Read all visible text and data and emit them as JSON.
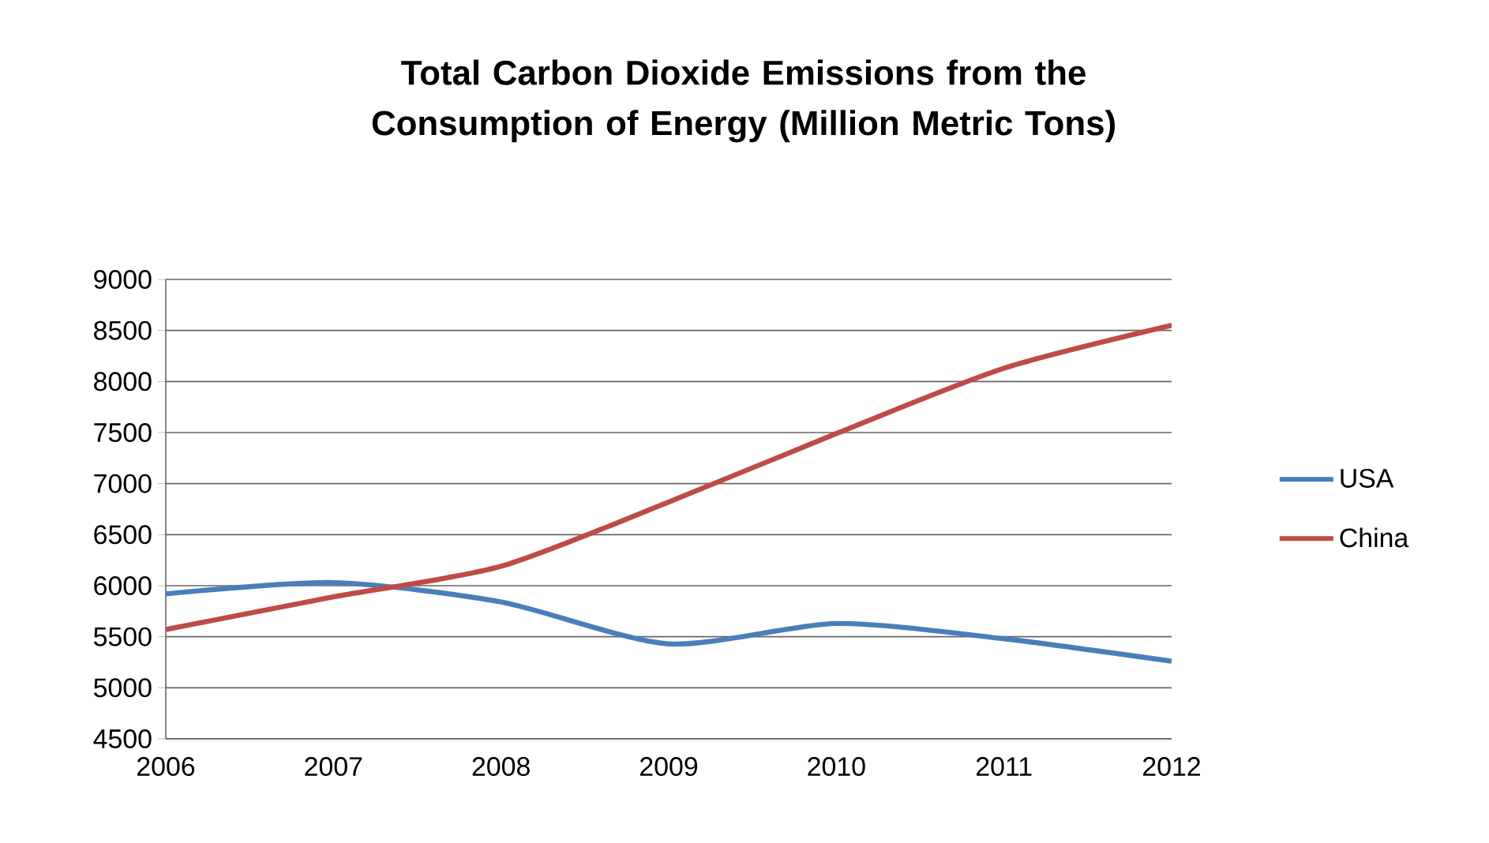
{
  "chart_data": {
    "type": "line",
    "title": "Total Carbon Dioxide Emissions from the Consumption of Energy (Million Metric Tons)",
    "x": [
      2006,
      2007,
      2008,
      2009,
      2010,
      2011,
      2012
    ],
    "series": [
      {
        "name": "USA",
        "color": "#4a7ebb",
        "values": [
          5920,
          6030,
          5840,
          5430,
          5630,
          5480,
          5260
        ]
      },
      {
        "name": "China",
        "color": "#be4b48",
        "values": [
          5570,
          5890,
          6190,
          6820,
          7490,
          8130,
          8550
        ]
      }
    ],
    "xlim": [
      2006,
      2012
    ],
    "xticks": [
      2006,
      2007,
      2008,
      2009,
      2010,
      2011,
      2012
    ],
    "ylim": [
      4500,
      9000
    ],
    "yticks": [
      4500,
      5000,
      5500,
      6000,
      6500,
      7000,
      7500,
      8000,
      8500,
      9000
    ],
    "grid": "y",
    "legend": "right",
    "marker": "none",
    "line_style": "solid"
  }
}
